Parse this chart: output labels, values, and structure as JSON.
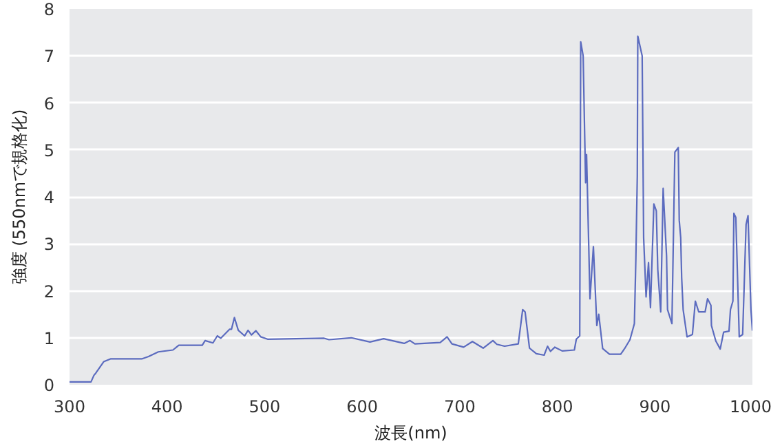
{
  "chart_data": {
    "type": "line",
    "xlabel": "波長(nm)",
    "ylabel": "強度 (550nmで規格化)",
    "xlim": [
      300,
      1000
    ],
    "ylim": [
      0,
      8
    ],
    "xticks": [
      300,
      400,
      500,
      600,
      700,
      800,
      900,
      1000
    ],
    "yticks": [
      0,
      1,
      2,
      3,
      4,
      5,
      6,
      7,
      8
    ],
    "grid": "y",
    "line_style": "solid",
    "x": [
      300,
      322,
      325,
      327,
      335,
      342,
      374,
      381,
      391,
      406,
      412,
      436,
      439,
      447,
      451.5,
      455,
      464,
      466,
      469,
      473,
      479.5,
      483,
      486.5,
      491,
      496,
      503,
      561,
      566,
      589,
      608,
      622,
      643,
      649,
      654,
      680,
      687,
      692,
      704,
      713,
      724,
      734,
      738,
      746,
      760,
      764.5,
      767,
      771.5,
      778.5,
      786.5,
      790,
      793,
      797.5,
      805,
      817.5,
      819.5,
      823,
      824,
      826.5,
      829,
      830,
      833.5,
      837,
      840.5,
      842.5,
      846.5,
      853.5,
      865,
      869,
      874.5,
      879,
      880.5,
      882,
      882.5,
      887,
      888.5,
      891,
      893.5,
      895.5,
      899,
      901.5,
      903,
      906,
      908.5,
      912,
      913,
      917.5,
      920.5,
      924,
      925,
      926.5,
      927.5,
      929,
      933,
      938.5,
      941.5,
      945,
      951.5,
      954,
      957.5,
      958,
      962.5,
      967,
      970.5,
      976,
      977.5,
      980,
      981,
      983,
      986.5,
      990,
      993.5,
      995.5,
      998.5,
      1000
    ],
    "series": [
      {
        "color": "#5b6bbf",
        "values": [
          0.06,
          0.06,
          0.2,
          0.25,
          0.49,
          0.55,
          0.55,
          0.6,
          0.7,
          0.74,
          0.84,
          0.84,
          0.94,
          0.89,
          1.04,
          0.99,
          1.18,
          1.18,
          1.43,
          1.16,
          1.04,
          1.16,
          1.06,
          1.15,
          1.02,
          0.97,
          0.99,
          0.96,
          1.0,
          0.91,
          0.98,
          0.88,
          0.94,
          0.87,
          0.9,
          1.02,
          0.87,
          0.8,
          0.92,
          0.78,
          0.94,
          0.86,
          0.82,
          0.87,
          1.6,
          1.55,
          0.78,
          0.66,
          0.63,
          0.82,
          0.71,
          0.8,
          0.72,
          0.74,
          0.97,
          1.04,
          7.3,
          7.0,
          4.3,
          4.9,
          1.83,
          2.94,
          1.26,
          1.5,
          0.77,
          0.65,
          0.65,
          0.77,
          0.96,
          1.3,
          2.65,
          4.45,
          7.42,
          7.0,
          3.13,
          1.87,
          2.6,
          1.64,
          3.85,
          3.7,
          2.45,
          1.55,
          4.18,
          2.74,
          1.6,
          1.3,
          4.95,
          5.05,
          3.5,
          3.13,
          2.27,
          1.6,
          1.02,
          1.07,
          1.78,
          1.55,
          1.55,
          1.83,
          1.69,
          1.26,
          0.93,
          0.76,
          1.12,
          1.14,
          1.6,
          1.78,
          3.65,
          3.56,
          1.02,
          1.07,
          3.41,
          3.6,
          1.6,
          1.15
        ]
      }
    ]
  }
}
